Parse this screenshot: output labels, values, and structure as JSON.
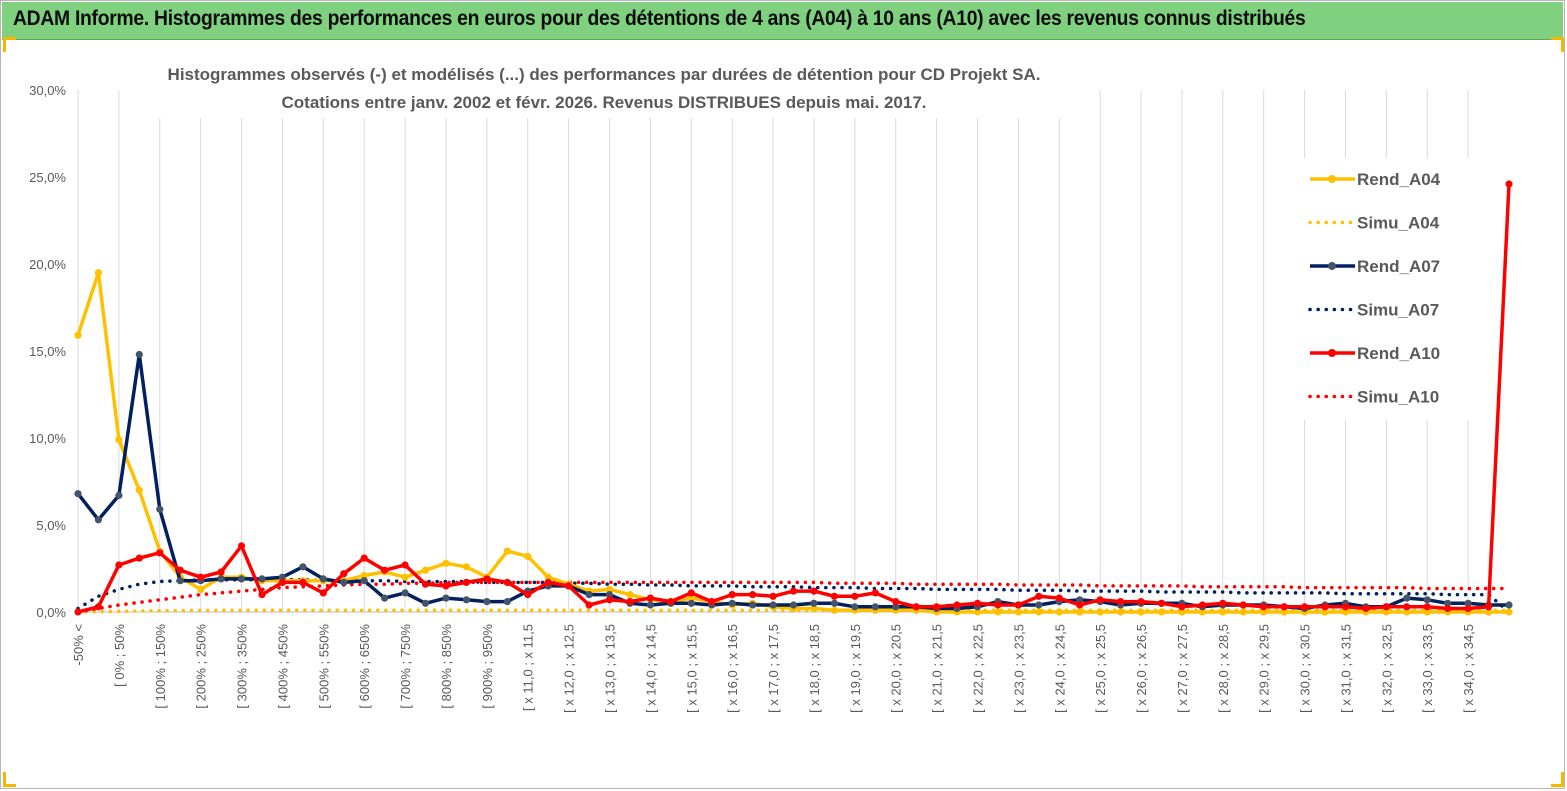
{
  "banner": {
    "title": "ADAM Informe. Histogrammes des performances en euros pour des détentions de 4 ans (A04) à 10 ans (A10) avec les revenus connus distribués"
  },
  "colors": {
    "banner": "#7fd07f",
    "corner": "#f5b800",
    "A04": "#ffc000",
    "A07": "#002060",
    "A10": "#ff0000"
  },
  "chart_data": {
    "type": "line",
    "title": "Histogrammes observés (-) et modélisés (...) des performances par durées de détention pour CD Projekt SA.",
    "subtitle": "Cotations entre janv. 2002 et févr. 2026. Revenus DISTRIBUES depuis mai. 2017.",
    "xlabel": "",
    "ylabel": "",
    "ylim": [
      0,
      30
    ],
    "yticks": [
      "0,0%",
      "5,0%",
      "10,0%",
      "15,0%",
      "20,0%",
      "25,0%",
      "30,0%"
    ],
    "grid": "vertical",
    "legend_position": "right",
    "x_labels": [
      "-50% <",
      "[ 0% ; 50%",
      "[ 100% ; 150%",
      "[ 200% ; 250%",
      "[ 300% ; 350%",
      "[ 400% ; 450%",
      "[ 500% ; 550%",
      "[ 600% ; 650%",
      "[ 700% ; 750%",
      "[ 800% ; 850%",
      "[ 900% ; 950%",
      "[ x 11,0 ; x 11,5",
      "[ x 12,0 ; x 12,5",
      "[ x 13,0 ; x 13,5",
      "[ x 14,0 ; x 14,5",
      "[ x 15,0 ; x 15,5",
      "[ x 16,0 ; x 16,5",
      "[ x 17,0 ; x 17,5",
      "[ x 18,0 ; x 18,5",
      "[ x 19,0 ; x 19,5",
      "[ x 20,0 ; x 20,5",
      "[ x 21,0 ; x 21,5",
      "[ x 22,0 ; x 22,5",
      "[ x 23,0 ; x 23,5",
      "[ x 24,0 ; x 24,5",
      "[ x 25,0 ; x 25,5",
      "[ x 26,0 ; x 26,5",
      "[ x 27,0 ; x 27,5",
      "[ x 28,0 ; x 28,5",
      "[ x 29,0 ; x 29,5",
      "[ x 30,0 ; x 30,5",
      "[ x 31,0 ; x 31,5",
      "[ x 32,0 ; x 32,5",
      "[ x 33,0 ; x 33,5",
      "[ x 34,0 ; x 34,5"
    ],
    "series": [
      {
        "name": "Rend_A04",
        "style": "solid",
        "color": "#ffc000",
        "values": [
          15.9,
          19.5,
          9.9,
          7.0,
          3.5,
          2.0,
          1.3,
          2.0,
          2.0,
          1.8,
          1.8,
          1.8,
          1.8,
          1.8,
          2.1,
          2.3,
          2.0,
          2.4,
          2.8,
          2.6,
          2.0,
          3.5,
          3.2,
          2.0,
          1.6,
          1.2,
          1.3,
          1.0,
          0.7,
          0.6,
          0.8,
          0.6,
          0.4,
          0.5,
          0.3,
          0.2,
          0.2,
          0.1,
          0.1,
          0.1,
          0.1,
          0.1,
          0.0,
          0.0,
          0.0,
          0.0,
          0.0,
          0.0,
          0.0,
          0.0,
          0.0,
          0.0,
          0.0,
          0.0,
          0.0,
          0.0,
          0.0,
          0.0,
          0.0,
          0.0,
          0.0,
          0.0,
          0.0,
          0.0,
          0.0,
          0.0,
          0.0,
          0.0,
          0.0,
          0.0,
          0.0
        ]
      },
      {
        "name": "Simu_A04",
        "style": "dotted",
        "color": "#ffc000",
        "values": [
          0.0,
          0.02,
          0.04,
          0.06,
          0.07,
          0.08,
          0.09,
          0.1,
          0.1,
          0.1,
          0.1,
          0.1,
          0.1,
          0.1,
          0.1,
          0.1,
          0.1,
          0.1,
          0.1,
          0.1,
          0.1,
          0.1,
          0.1,
          0.1,
          0.1,
          0.1,
          0.1,
          0.1,
          0.1,
          0.1,
          0.1,
          0.1,
          0.1,
          0.1,
          0.1,
          0.1,
          0.1,
          0.1,
          0.1,
          0.1,
          0.1,
          0.1,
          0.1,
          0.1,
          0.1,
          0.1,
          0.1,
          0.1,
          0.1,
          0.1,
          0.1,
          0.1,
          0.1,
          0.1,
          0.1,
          0.1,
          0.1,
          0.1,
          0.1,
          0.1,
          0.1,
          0.1,
          0.1,
          0.1,
          0.1,
          0.1,
          0.1,
          0.1,
          0.1,
          0.1,
          0.1
        ]
      },
      {
        "name": "Rend_A07",
        "style": "solid",
        "color": "#002060",
        "values": [
          6.8,
          5.3,
          6.7,
          14.8,
          5.9,
          1.8,
          1.8,
          1.9,
          1.9,
          1.9,
          2.0,
          2.6,
          1.9,
          1.7,
          1.8,
          0.8,
          1.1,
          0.5,
          0.8,
          0.7,
          0.6,
          0.6,
          1.2,
          1.5,
          1.5,
          1.0,
          1.0,
          0.5,
          0.4,
          0.5,
          0.5,
          0.4,
          0.5,
          0.4,
          0.4,
          0.4,
          0.5,
          0.5,
          0.3,
          0.3,
          0.3,
          0.3,
          0.2,
          0.2,
          0.3,
          0.6,
          0.4,
          0.4,
          0.6,
          0.7,
          0.6,
          0.4,
          0.5,
          0.5,
          0.5,
          0.3,
          0.4,
          0.4,
          0.4,
          0.3,
          0.2,
          0.4,
          0.5,
          0.3,
          0.3,
          0.8,
          0.7,
          0.5,
          0.5,
          0.4,
          0.4
        ]
      },
      {
        "name": "Simu_A07",
        "style": "dotted",
        "color": "#002060",
        "values": [
          0.2,
          0.9,
          1.3,
          1.6,
          1.75,
          1.8,
          1.85,
          1.85,
          1.85,
          1.85,
          1.85,
          1.85,
          1.8,
          1.8,
          1.8,
          1.8,
          1.75,
          1.75,
          1.75,
          1.75,
          1.7,
          1.7,
          1.7,
          1.7,
          1.65,
          1.65,
          1.6,
          1.6,
          1.55,
          1.55,
          1.5,
          1.5,
          1.5,
          1.45,
          1.45,
          1.45,
          1.4,
          1.4,
          1.4,
          1.35,
          1.35,
          1.35,
          1.3,
          1.3,
          1.3,
          1.3,
          1.25,
          1.25,
          1.25,
          1.2,
          1.2,
          1.2,
          1.2,
          1.15,
          1.15,
          1.15,
          1.15,
          1.1,
          1.1,
          1.1,
          1.1,
          1.1,
          1.05,
          1.05,
          1.05,
          1.05,
          1.05,
          1.0,
          1.0,
          1.0,
          0.0
        ]
      },
      {
        "name": "Rend_A10",
        "style": "solid",
        "color": "#ff0000",
        "values": [
          0.0,
          0.3,
          2.7,
          3.1,
          3.4,
          2.4,
          2.0,
          2.3,
          3.8,
          1.0,
          1.7,
          1.7,
          1.1,
          2.2,
          3.1,
          2.4,
          2.7,
          1.6,
          1.5,
          1.7,
          1.9,
          1.7,
          1.0,
          1.7,
          1.5,
          0.4,
          0.7,
          0.6,
          0.8,
          0.6,
          1.1,
          0.6,
          1.0,
          1.0,
          0.9,
          1.2,
          1.2,
          0.9,
          0.9,
          1.1,
          0.6,
          0.3,
          0.3,
          0.4,
          0.5,
          0.4,
          0.4,
          0.9,
          0.8,
          0.4,
          0.7,
          0.6,
          0.6,
          0.5,
          0.3,
          0.4,
          0.5,
          0.4,
          0.3,
          0.3,
          0.3,
          0.3,
          0.3,
          0.2,
          0.3,
          0.3,
          0.3,
          0.2,
          0.2,
          0.3,
          24.6
        ]
      },
      {
        "name": "Simu_A10",
        "style": "dotted",
        "color": "#ff0000",
        "values": [
          0.0,
          0.2,
          0.4,
          0.55,
          0.7,
          0.85,
          1.0,
          1.1,
          1.2,
          1.3,
          1.4,
          1.45,
          1.5,
          1.55,
          1.6,
          1.6,
          1.65,
          1.65,
          1.7,
          1.7,
          1.7,
          1.7,
          1.7,
          1.7,
          1.7,
          1.7,
          1.7,
          1.7,
          1.7,
          1.7,
          1.7,
          1.7,
          1.7,
          1.7,
          1.7,
          1.7,
          1.7,
          1.65,
          1.65,
          1.65,
          1.65,
          1.6,
          1.6,
          1.6,
          1.6,
          1.6,
          1.55,
          1.55,
          1.55,
          1.55,
          1.5,
          1.5,
          1.5,
          1.5,
          1.5,
          1.45,
          1.45,
          1.45,
          1.45,
          1.45,
          1.4,
          1.4,
          1.4,
          1.4,
          1.4,
          1.4,
          1.35,
          1.35,
          1.35,
          1.35,
          1.35
        ]
      }
    ]
  }
}
